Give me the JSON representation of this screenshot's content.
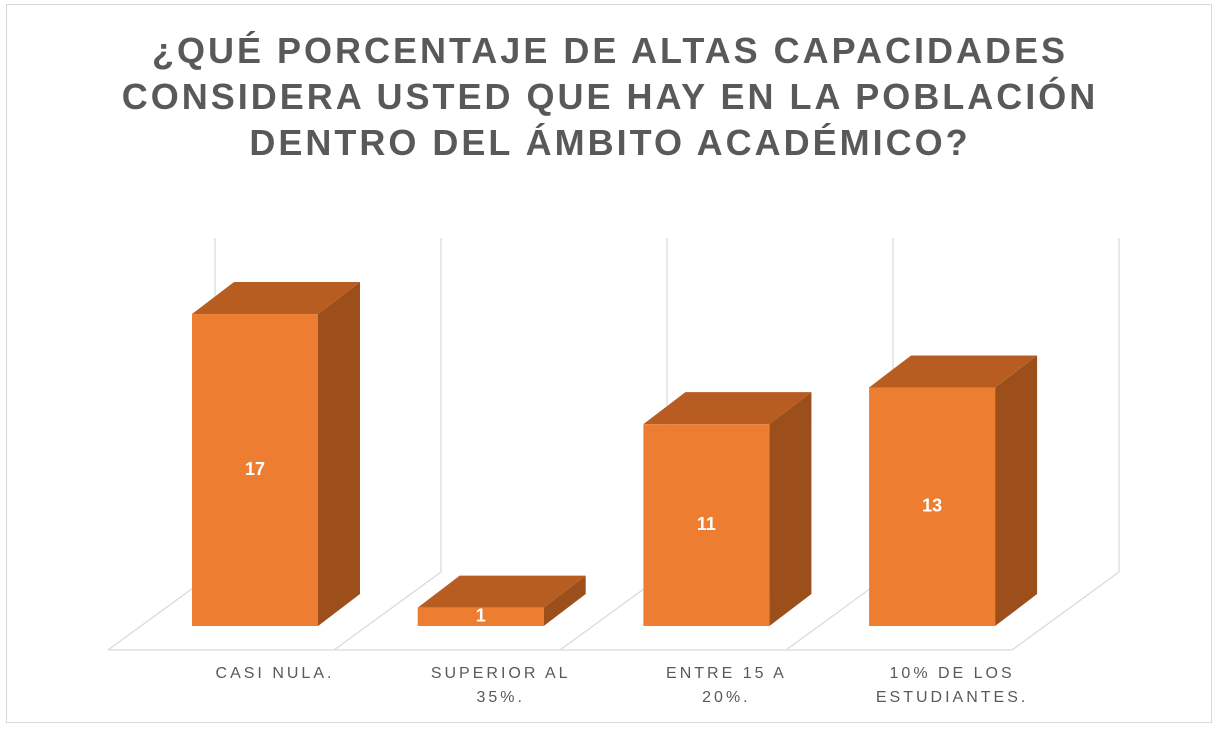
{
  "chart_data": {
    "type": "bar3d",
    "title": "¿QUÉ PORCENTAJE DE ALTAS CAPACIDADES CONSIDERA USTED QUE HAY EN LA POBLACIÓN DENTRO DEL ÁMBITO ACADÉMICO?",
    "categories": [
      "CASI NULA.",
      "SUPERIOR AL\n35%.",
      "ENTRE 15 A\n20%.",
      "10% DE LOS\nESTUDIANTES."
    ],
    "values": [
      17,
      1,
      11,
      13
    ],
    "color": "#ed7d31"
  }
}
